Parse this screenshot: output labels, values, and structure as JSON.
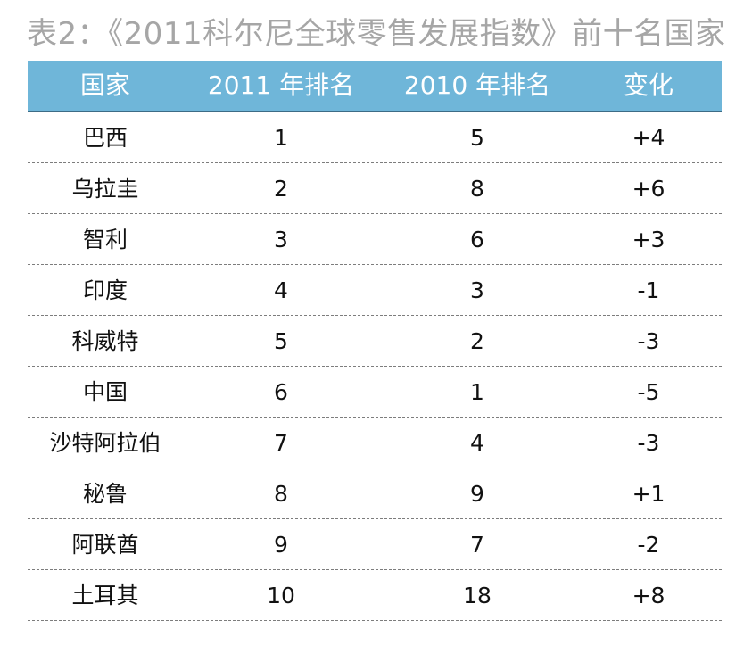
{
  "chart_data": {
    "type": "table",
    "title": "表2：《2011科尔尼全球零售发展指数》前十名国家",
    "columns": [
      "国家",
      "2011 年排名",
      "2010 年排名",
      "变化"
    ],
    "rows": [
      [
        "巴西",
        "1",
        "5",
        "+4"
      ],
      [
        "乌拉圭",
        "2",
        "8",
        "+6"
      ],
      [
        "智利",
        "3",
        "6",
        "+3"
      ],
      [
        "印度",
        "4",
        "3",
        "-1"
      ],
      [
        "科威特",
        "5",
        "2",
        "-3"
      ],
      [
        "中国",
        "6",
        "1",
        "-5"
      ],
      [
        "沙特阿拉伯",
        "7",
        "4",
        "-3"
      ],
      [
        "秘鲁",
        "8",
        "9",
        "+1"
      ],
      [
        "阿联酋",
        "9",
        "7",
        "-2"
      ],
      [
        "土耳其",
        "10",
        "18",
        "+8"
      ]
    ]
  },
  "colors": {
    "header_background": "#6fb6d9",
    "header_text": "#ffffff",
    "title_text": "#a6a6a6"
  }
}
